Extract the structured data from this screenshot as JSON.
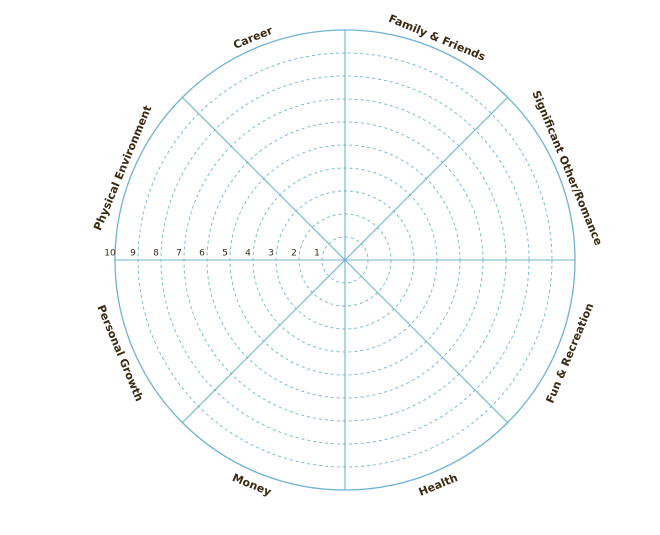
{
  "wheel": {
    "segments": [
      "Significant Other/Romance",
      "Family & Friends",
      "Career",
      "Physical Environment",
      "Personal Growth",
      "Money",
      "Health",
      "Fun & Recreation"
    ],
    "scale": [
      1,
      2,
      3,
      4,
      5,
      6,
      7,
      8,
      9,
      10
    ]
  }
}
